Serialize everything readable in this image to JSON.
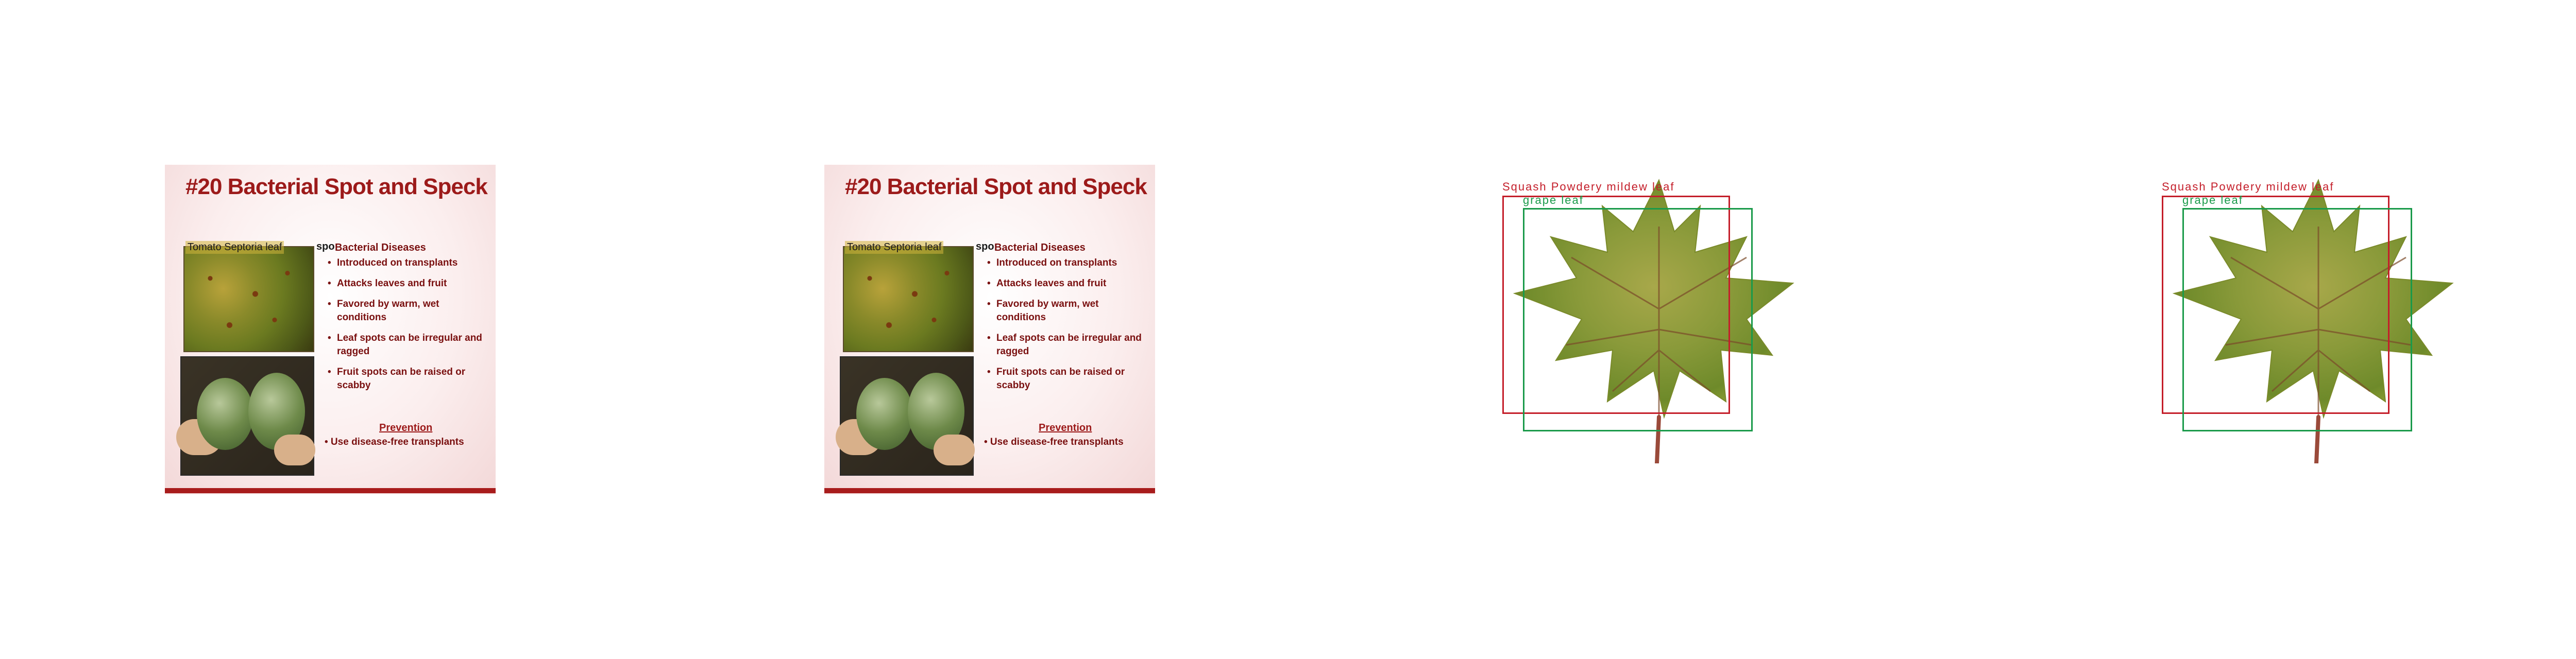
{
  "panels": [
    {
      "slide": {
        "title": "#20 Bacterial Spot and Speck",
        "overlay_label": "Tomato Septoria leaf",
        "overlay_fragment": "spo",
        "section_head": "Bacterial Diseases",
        "bullets": [
          "Introduced on transplants",
          "Attacks leaves and fruit",
          "Favored by warm, wet conditions",
          "Leaf spots can be irregular and ragged",
          "Fruit spots can be raised or scabby"
        ],
        "prevention_head": "Prevention",
        "prevention_item": "• Use disease-free transplants"
      }
    },
    {
      "slide": {
        "title": "#20 Bacterial Spot and Speck",
        "overlay_label": "Tomato Septoria leaf",
        "overlay_fragment": "spo",
        "section_head": "Bacterial Diseases",
        "bullets": [
          "Introduced on transplants",
          "Attacks leaves and fruit",
          "Favored by warm, wet conditions",
          "Leaf spots can be irregular and ragged",
          "Fruit spots can be raised or scabby"
        ],
        "prevention_head": "Prevention",
        "prevention_item": "• Use disease-free transplants"
      }
    },
    {
      "detections": [
        {
          "label": "Squash Powdery mildew leaf",
          "color": "#c41e2a"
        },
        {
          "label": "grape leaf",
          "color": "#1a9a4a"
        }
      ]
    },
    {
      "detections": [
        {
          "label": "Squash Powdery mildew leaf",
          "color": "#c41e2a"
        },
        {
          "label": "grape leaf",
          "color": "#1a9a4a"
        }
      ]
    }
  ],
  "colors": {
    "title": "#9c1a1a",
    "text": "#7a1010",
    "rule": "#a81c1c"
  }
}
